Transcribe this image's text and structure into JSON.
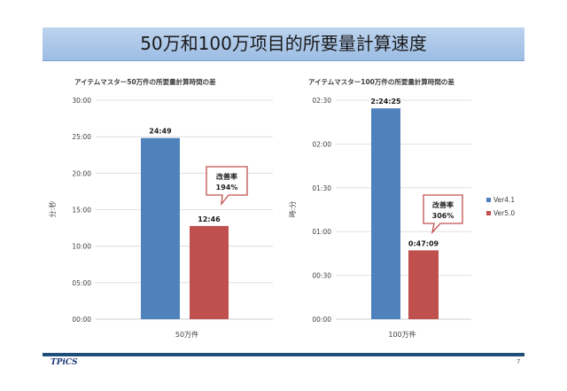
{
  "slide": {
    "title": "50万和100万项目的所要量計算速度",
    "logo": "TPiCS",
    "page_number": "7"
  },
  "colors": {
    "ver41": "#4f81bd",
    "ver50": "#c0504d"
  },
  "chart_data": [
    {
      "type": "bar",
      "title": "アイテムマスター50万件の所要量計算時間の差",
      "ylabel": "分:秒",
      "categories": [
        "50万件"
      ],
      "yticks": [
        "00:00",
        "05:00",
        "10:00",
        "15:00",
        "20:00",
        "25:00",
        "30:00"
      ],
      "ylim": [
        0,
        30
      ],
      "series": [
        {
          "name": "Ver4.1",
          "values": [
            24.8167
          ],
          "labels": [
            "24:49"
          ]
        },
        {
          "name": "Ver5.0",
          "values": [
            12.7667
          ],
          "labels": [
            "12:46"
          ]
        }
      ],
      "callout": {
        "line1": "改善率",
        "line2": "194%"
      }
    },
    {
      "type": "bar",
      "title": "アイテムマスター100万件の所要量計算時間の差",
      "ylabel": "時:分",
      "categories": [
        "100万件"
      ],
      "yticks": [
        "00:00",
        "00:30",
        "01:00",
        "01:30",
        "02:00",
        "02:30"
      ],
      "ylim": [
        0,
        150
      ],
      "series": [
        {
          "name": "Ver4.1",
          "values": [
            144.4167
          ],
          "labels": [
            "2:24:25"
          ]
        },
        {
          "name": "Ver5.0",
          "values": [
            47.15
          ],
          "labels": [
            "0:47:09"
          ]
        }
      ],
      "callout": {
        "line1": "改善率",
        "line2": "306%"
      },
      "legend": [
        "Ver4.1",
        "Ver5.0"
      ]
    }
  ]
}
